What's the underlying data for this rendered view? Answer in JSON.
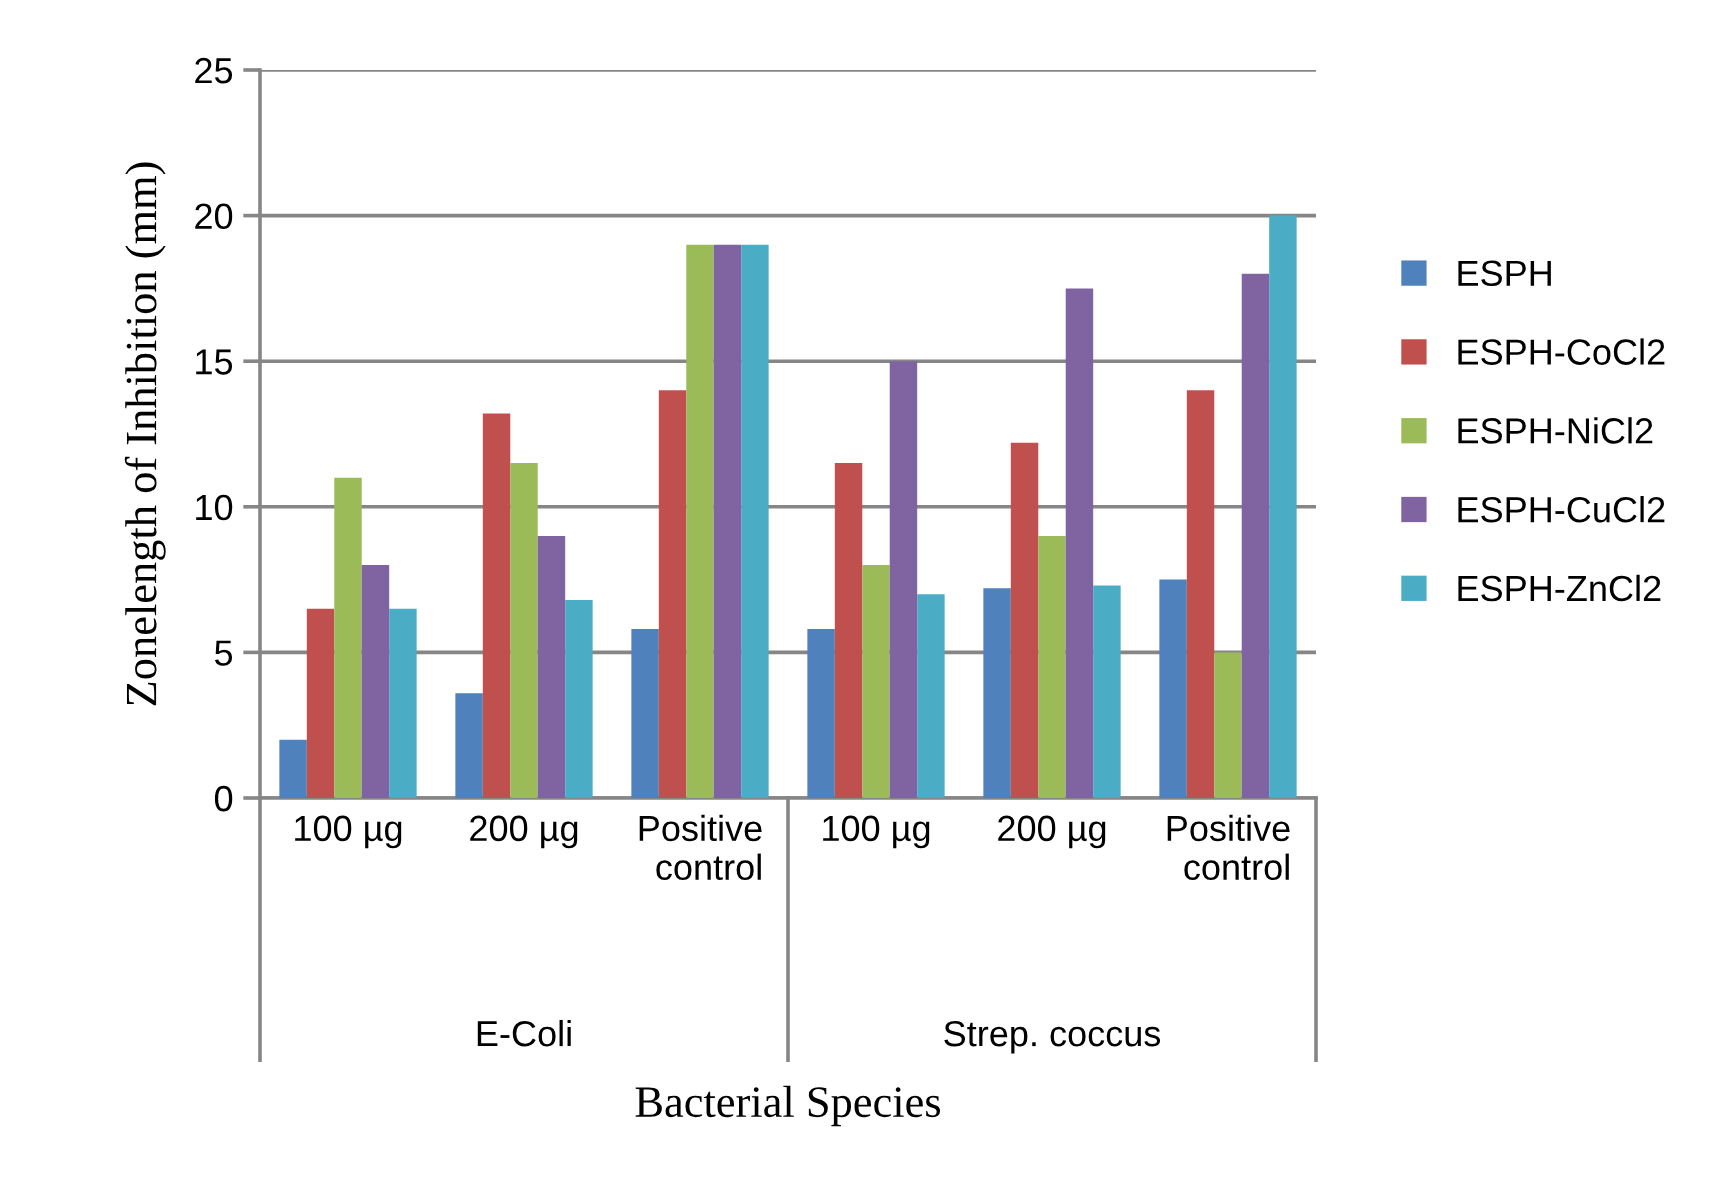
{
  "chart_data": {
    "type": "bar",
    "xlabel": "Bacterial Species",
    "ylabel": "Zonelength of Inhibition (mm)",
    "categories": [
      "100 µg",
      "200 µg",
      "Positive control",
      "100 µg",
      "200 µg",
      "Positive control"
    ],
    "annotations": [
      "E-Coli",
      "Strep. coccus"
    ],
    "series": [
      {
        "name": "ESPH",
        "color": "#4f81bd",
        "values": [
          2,
          3.6,
          5.8,
          5.8,
          7.2,
          7.5
        ]
      },
      {
        "name": "ESPH-CoCl2",
        "color": "#c0504d",
        "values": [
          6.5,
          13.2,
          14,
          11.5,
          12.2,
          14
        ]
      },
      {
        "name": "ESPH-NiCl2",
        "color": "#9bbb59",
        "values": [
          11,
          11.5,
          19,
          8,
          9,
          5
        ]
      },
      {
        "name": "ESPH-CuCl2",
        "color": "#8064a2",
        "values": [
          8,
          9,
          19,
          15,
          17.5,
          18
        ]
      },
      {
        "name": "ESPH-ZnCl2",
        "color": "#4bacc6",
        "values": [
          6.5,
          6.8,
          19,
          7,
          7.3,
          20
        ]
      }
    ],
    "ylim": [
      0,
      25
    ],
    "yticks": [
      0,
      5,
      10,
      15,
      20,
      25
    ],
    "grid": "y",
    "legend": "right"
  }
}
